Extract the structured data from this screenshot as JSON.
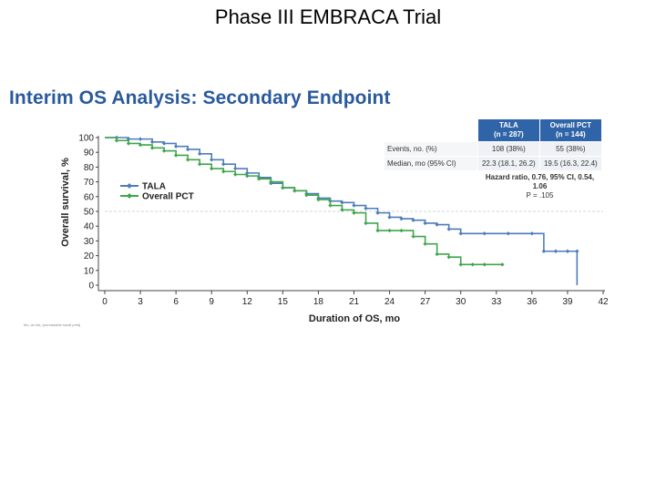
{
  "slide": {
    "title": "Phase III EMBRACA Trial",
    "subtitle": "Interim OS Analysis: Secondary Endpoint",
    "footnote": "Mo, at risk, [unreadable small print]"
  },
  "table": {
    "headers": [
      {
        "line1": "TALA",
        "line2": "(n = 287)"
      },
      {
        "line1": "Overall PCT",
        "line2": "(n = 144)"
      }
    ],
    "rows": [
      {
        "label": "Events, no. (%)",
        "tala": "108 (38%)",
        "pct": "55 (38%)"
      },
      {
        "label": "Median, mo (95% CI)",
        "tala": "22.3 (18.1, 26.2)",
        "pct": "19.5 (16.3, 22.4)"
      }
    ],
    "hazard_ratio": "Hazard ratio, 0.76, 95% CI, 0.54, 1.06",
    "p_value": "P = .105"
  },
  "colors": {
    "tala": "#4f7cba",
    "pct": "#3fa54a",
    "title": "#2a5a9c",
    "header": "#2f64a8"
  },
  "chart_data": {
    "type": "line",
    "title": "Interim OS Analysis: Secondary Endpoint",
    "xlabel": "Duration of OS, mo",
    "ylabel": "Overall survival, %",
    "xlim": [
      0,
      42
    ],
    "ylim": [
      0,
      100
    ],
    "xticks": [
      0,
      3,
      6,
      9,
      12,
      15,
      18,
      21,
      24,
      27,
      30,
      33,
      36,
      39,
      42
    ],
    "yticks": [
      0,
      10,
      20,
      30,
      40,
      50,
      60,
      70,
      80,
      90,
      100
    ],
    "reference_line_y": 50,
    "legend": [
      "TALA",
      "Overall PCT"
    ],
    "legend_position": "left",
    "series": [
      {
        "name": "TALA",
        "color": "#4f7cba",
        "points": [
          [
            0,
            100
          ],
          [
            1,
            100
          ],
          [
            2,
            99
          ],
          [
            3,
            99
          ],
          [
            4,
            97
          ],
          [
            5,
            96
          ],
          [
            6,
            94
          ],
          [
            7,
            92
          ],
          [
            8,
            89
          ],
          [
            9,
            85
          ],
          [
            10,
            82
          ],
          [
            11,
            79
          ],
          [
            12,
            76
          ],
          [
            13,
            73
          ],
          [
            14,
            69
          ],
          [
            15,
            66
          ],
          [
            16,
            64
          ],
          [
            17,
            62
          ],
          [
            18,
            59
          ],
          [
            19,
            57
          ],
          [
            20,
            56
          ],
          [
            21,
            54
          ],
          [
            22,
            52
          ],
          [
            23,
            49
          ],
          [
            24,
            46
          ],
          [
            25,
            45
          ],
          [
            26,
            44
          ],
          [
            27,
            42
          ],
          [
            28,
            41
          ],
          [
            29,
            38
          ],
          [
            30,
            35
          ],
          [
            32,
            35
          ],
          [
            34,
            35
          ],
          [
            36,
            35
          ],
          [
            37,
            23
          ],
          [
            38,
            23
          ],
          [
            39,
            23
          ],
          [
            39.8,
            23
          ],
          [
            39.8,
            0
          ]
        ]
      },
      {
        "name": "Overall PCT",
        "color": "#3fa54a",
        "points": [
          [
            0,
            100
          ],
          [
            1,
            98
          ],
          [
            2,
            96
          ],
          [
            3,
            95
          ],
          [
            4,
            93
          ],
          [
            5,
            91
          ],
          [
            6,
            88
          ],
          [
            7,
            85
          ],
          [
            8,
            82
          ],
          [
            9,
            79
          ],
          [
            10,
            77
          ],
          [
            11,
            75
          ],
          [
            12,
            74
          ],
          [
            13,
            72
          ],
          [
            14,
            70
          ],
          [
            15,
            66
          ],
          [
            16,
            64
          ],
          [
            17,
            61
          ],
          [
            18,
            58
          ],
          [
            19,
            54
          ],
          [
            20,
            51
          ],
          [
            21,
            49
          ],
          [
            22,
            42
          ],
          [
            23,
            37
          ],
          [
            24,
            37
          ],
          [
            25,
            37
          ],
          [
            26,
            33
          ],
          [
            27,
            28
          ],
          [
            28,
            21
          ],
          [
            29,
            19
          ],
          [
            30,
            14
          ],
          [
            31,
            14
          ],
          [
            32,
            14
          ],
          [
            33.5,
            14
          ]
        ]
      }
    ]
  }
}
